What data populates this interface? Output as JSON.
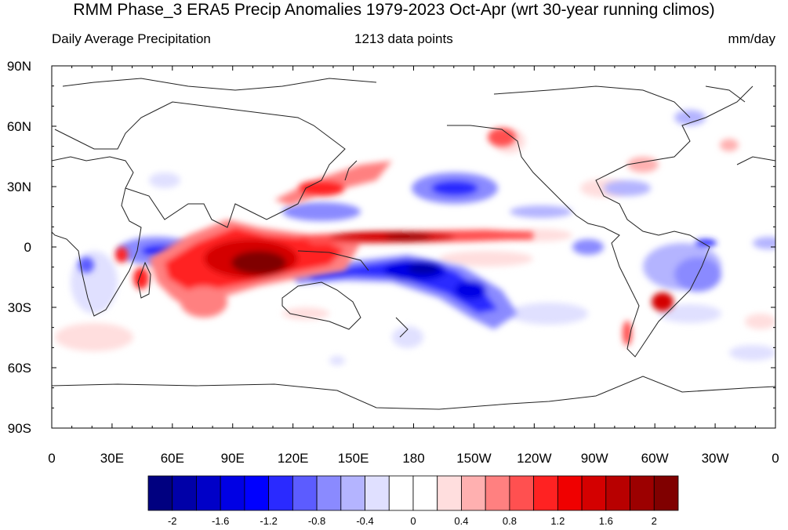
{
  "map": {
    "title": "RMM Phase_3 ERA5 Precip Anomalies 1979-2023 Oct-Apr (wrt 30-year running climos)",
    "left_string": "Daily Average Precipitation",
    "center_string": "1213 data points",
    "right_string": "mm/day",
    "lon_ticks": [
      "0",
      "30E",
      "60E",
      "90E",
      "120E",
      "150E",
      "180",
      "150W",
      "120W",
      "90W",
      "60W",
      "30W",
      "0"
    ],
    "lat_ticks": [
      "90N",
      "60N",
      "30N",
      "0",
      "30S",
      "60S",
      "90S"
    ],
    "projection": "cylindrical equidistant, 0 to 360 longitude"
  },
  "colorbar": {
    "labels": [
      "-2",
      "-1.6",
      "-1.2",
      "-0.8",
      "-0.4",
      "0",
      "0.4",
      "0.8",
      "1.2",
      "1.6",
      "2"
    ],
    "colors": [
      "#000080",
      "#0000a8",
      "#0000c8",
      "#0000e4",
      "#0000ff",
      "#2a2aff",
      "#5c5cff",
      "#8a8aff",
      "#b4b4ff",
      "#e0e0ff",
      "#ffffff",
      "#ffffff",
      "#ffdede",
      "#ffb0b0",
      "#ff8080",
      "#ff5050",
      "#ff2222",
      "#f00000",
      "#d40000",
      "#b80000",
      "#9c0000",
      "#800000"
    ]
  }
}
